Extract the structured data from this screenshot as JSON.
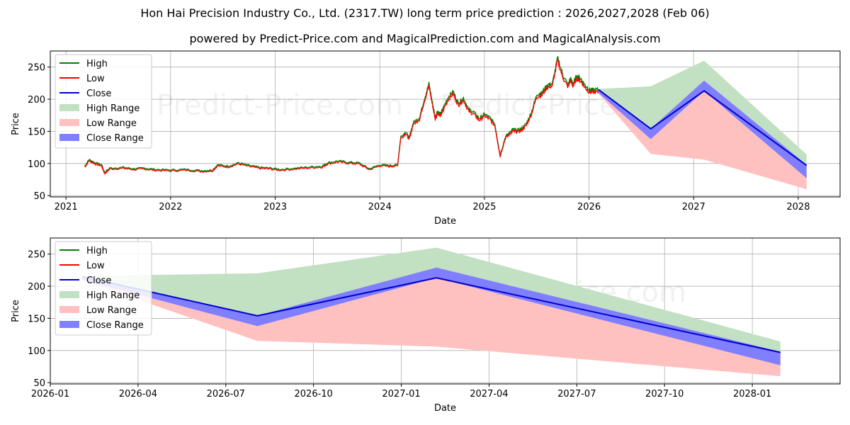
{
  "chart_data": {
    "title": "Hon Hai Precision Industry Co., Ltd. (2317.TW) long term price prediction : 2026,2027,2028 (Feb 06)",
    "subtitle": "powered by Predict-Price.com and MagicalPrediction.com and MagicalAnalysis.com",
    "watermark": "Predict-Price.com",
    "colors": {
      "high": "#008000",
      "low": "#ff0000",
      "close": "#0000cc",
      "high_range": "#c2e0c2",
      "low_range": "#ffc0c0",
      "close_range": "#7f7fff",
      "grid": "#b0b0b0"
    },
    "legend": [
      "High",
      "Low",
      "Close",
      "High Range",
      "Low Range",
      "Close Range"
    ],
    "panels": [
      {
        "type": "line",
        "xlabel": "Date",
        "ylabel": "Price",
        "xlim": [
          2020.85,
          2028.4
        ],
        "ylim": [
          48,
          275
        ],
        "xticks": [
          {
            "v": 2021,
            "label": "2021"
          },
          {
            "v": 2022,
            "label": "2022"
          },
          {
            "v": 2023,
            "label": "2023"
          },
          {
            "v": 2024,
            "label": "2024"
          },
          {
            "v": 2025,
            "label": "2025"
          },
          {
            "v": 2026,
            "label": "2026"
          },
          {
            "v": 2027,
            "label": "2027"
          },
          {
            "v": 2028,
            "label": "2028"
          }
        ],
        "yticks": [
          50,
          100,
          150,
          200,
          250
        ],
        "legend_position": "upper-left",
        "history": {
          "x": [
            2021.18,
            2021.22,
            2021.28,
            2021.34,
            2021.37,
            2021.42,
            2021.55,
            2021.65,
            2021.75,
            2021.85,
            2022.0,
            2022.15,
            2022.3,
            2022.4,
            2022.45,
            2022.55,
            2022.65,
            2022.75,
            2022.85,
            2022.95,
            2023.05,
            2023.2,
            2023.35,
            2023.45,
            2023.5,
            2023.6,
            2023.7,
            2023.8,
            2023.9,
            2024.0,
            2024.1,
            2024.17,
            2024.2,
            2024.25,
            2024.28,
            2024.32,
            2024.38,
            2024.42,
            2024.47,
            2024.5,
            2024.53,
            2024.55,
            2024.58,
            2024.6,
            2024.65,
            2024.7,
            2024.75,
            2024.8,
            2024.85,
            2024.9,
            2024.95,
            2025.0,
            2025.05,
            2025.1,
            2025.15,
            2025.2,
            2025.25,
            2025.27,
            2025.3,
            2025.35,
            2025.4,
            2025.45,
            2025.5,
            2025.55,
            2025.6,
            2025.65,
            2025.7,
            2025.75,
            2025.8,
            2025.82,
            2025.85,
            2025.88,
            2025.92,
            2025.96,
            2026.0,
            2026.04,
            2026.09
          ],
          "close": [
            95,
            105,
            100,
            97,
            85,
            92,
            93,
            91,
            92,
            90,
            89,
            90,
            88,
            89,
            97,
            95,
            100,
            96,
            93,
            92,
            90,
            92,
            94,
            95,
            100,
            103,
            101,
            100,
            91,
            97,
            96,
            97,
            140,
            148,
            138,
            162,
            170,
            195,
            222,
            195,
            170,
            180,
            175,
            182,
            200,
            210,
            192,
            200,
            182,
            178,
            168,
            175,
            170,
            160,
            112,
            140,
            148,
            152,
            150,
            152,
            160,
            178,
            205,
            208,
            220,
            222,
            262,
            235,
            220,
            230,
            222,
            234,
            230,
            220,
            213,
            212,
            213
          ]
        },
        "forecast": {
          "x": [
            2026.09,
            2026.59,
            2027.1,
            2028.08
          ],
          "close": [
            215,
            154,
            213,
            97
          ],
          "high_range": [
            [
              212,
              216
            ],
            [
              150,
              220
            ],
            [
              210,
              260
            ],
            [
              94,
              114
            ]
          ],
          "low_range": [
            [
              209,
              214
            ],
            [
              115,
              154
            ],
            [
              106,
              213
            ],
            [
              60,
              97
            ]
          ],
          "close_range": [
            [
              210,
              215
            ],
            [
              138,
              154
            ],
            [
              213,
              229
            ],
            [
              77,
              98
            ]
          ]
        }
      },
      {
        "type": "line",
        "xlabel": "Date",
        "ylabel": "Price",
        "xlim": [
          2026.0,
          2028.25
        ],
        "ylim": [
          48,
          275
        ],
        "xticks": [
          {
            "v": 2026.0,
            "label": "2026-01"
          },
          {
            "v": 2026.25,
            "label": "2026-04"
          },
          {
            "v": 2026.5,
            "label": "2026-07"
          },
          {
            "v": 2026.75,
            "label": "2026-10"
          },
          {
            "v": 2027.0,
            "label": "2027-01"
          },
          {
            "v": 2027.25,
            "label": "2027-04"
          },
          {
            "v": 2027.5,
            "label": "2027-07"
          },
          {
            "v": 2027.75,
            "label": "2027-10"
          },
          {
            "v": 2028.0,
            "label": "2028-01"
          }
        ],
        "yticks": [
          50,
          100,
          150,
          200,
          250
        ],
        "legend_position": "upper-left",
        "forecast": {
          "x": [
            2026.09,
            2026.59,
            2027.1,
            2028.08
          ],
          "close": [
            215,
            154,
            213,
            97
          ],
          "high_range": [
            [
              212,
              216
            ],
            [
              150,
              220
            ],
            [
              210,
              260
            ],
            [
              94,
              114
            ]
          ],
          "low_range": [
            [
              209,
              214
            ],
            [
              115,
              154
            ],
            [
              106,
              213
            ],
            [
              60,
              97
            ]
          ],
          "close_range": [
            [
              210,
              215
            ],
            [
              138,
              154
            ],
            [
              213,
              229
            ],
            [
              77,
              98
            ]
          ]
        }
      }
    ]
  }
}
